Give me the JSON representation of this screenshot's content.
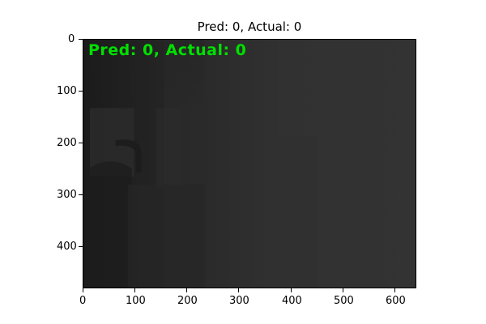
{
  "figure": {
    "title": "Pred: 0, Actual: 0"
  },
  "image": {
    "overlay_text": "Pred: 0, Actual: 0",
    "overlay_color": "#00e000",
    "description_colors": [
      "#1e1e1e",
      "#2c2c2c",
      "#353535"
    ]
  },
  "axes": {
    "x_ticks": [
      "0",
      "100",
      "200",
      "300",
      "400",
      "500",
      "600"
    ],
    "y_ticks": [
      "0",
      "100",
      "200",
      "300",
      "400"
    ]
  }
}
